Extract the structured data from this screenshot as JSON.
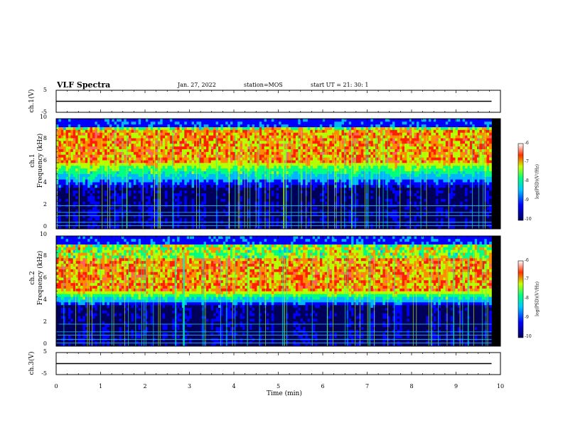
{
  "header": {
    "title": "VLF Spectra",
    "date": "Jan. 27, 2022",
    "station": "station=MOS",
    "start_ut": "start  UT =   21: 30: 1"
  },
  "chart_data": [
    {
      "type": "line",
      "name": "ch.1 voltage",
      "ylabel": "ch.1(V)",
      "ylim": [
        -5,
        5
      ],
      "yticks": [
        "5",
        "-5"
      ],
      "x": [
        0,
        9.8
      ],
      "y": [
        0,
        0
      ]
    },
    {
      "type": "heatmap",
      "ylabel": "ch.1\nFrequency (kHz)",
      "ylabel_top": "ch.1",
      "ylabel_bottom": "Frequency (kHz)",
      "ylim": [
        0,
        10
      ],
      "yticks": [
        "0",
        "2",
        "4",
        "6",
        "8",
        "10"
      ],
      "xlim": [
        0,
        10
      ],
      "data_end_min": 9.8,
      "peak_band_khz": [
        6,
        9
      ],
      "colorbar": {
        "label": "log(PSD)(V²/Hz)",
        "range": [
          -10,
          -6
        ],
        "ticks": [
          "-6",
          "-7",
          "-8",
          "-9",
          "-10"
        ]
      },
      "hum_lines_khz": [
        0.3,
        0.6,
        1.2,
        1.5,
        2.1
      ]
    },
    {
      "type": "heatmap",
      "ylabel": "ch.2\nFrequency (kHz)",
      "ylabel_top": "ch.2",
      "ylabel_bottom": "Frequency (kHz)",
      "ylim": [
        0,
        10
      ],
      "yticks": [
        "0",
        "2",
        "4",
        "6",
        "8",
        "10"
      ],
      "xlim": [
        0,
        10
      ],
      "data_end_min": 9.8,
      "peak_band_khz": [
        5,
        8
      ],
      "colorbar": {
        "label": "log(PSD)(V²/Hz)",
        "range": [
          -10,
          -6
        ],
        "ticks": [
          "-6",
          "-7",
          "-8",
          "-9",
          "-10"
        ]
      },
      "hum_lines_khz": [
        0.3,
        0.6,
        1.0,
        1.3,
        2.0
      ]
    },
    {
      "type": "line",
      "name": "ch.3 voltage",
      "ylabel": "ch.3(V)",
      "ylim": [
        -5,
        5
      ],
      "yticks": [
        "5",
        "-5"
      ],
      "x": [
        0,
        9.8
      ],
      "y": [
        0,
        0
      ]
    }
  ],
  "xaxis": {
    "label": "Time  (min)",
    "ticks": [
      "0",
      "1",
      "2",
      "3",
      "4",
      "5",
      "6",
      "7",
      "8",
      "9",
      "10"
    ]
  },
  "colors": {
    "background": "#000000",
    "hum_line": "#20c8ff",
    "colormap": [
      "#00005a",
      "#0000ff",
      "#00c8ff",
      "#00ff80",
      "#c8ff00",
      "#ff8000",
      "#ff0000",
      "#ffffff"
    ]
  }
}
